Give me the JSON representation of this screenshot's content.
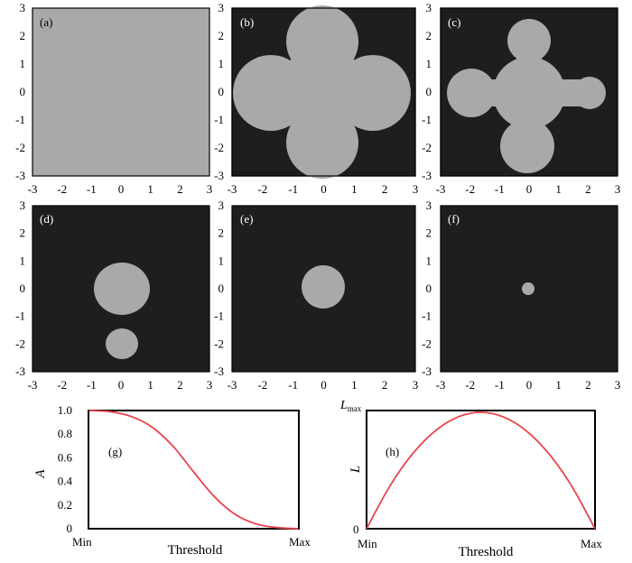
{
  "panels": [
    {
      "label": "(a)",
      "background": "#a9a9a9"
    },
    {
      "label": "(b)",
      "background": "#1e1e1e",
      "shape_fill": "#a9a9a9"
    },
    {
      "label": "(c)",
      "background": "#1e1e1e",
      "shape_fill": "#a9a9a9"
    },
    {
      "label": "(d)",
      "background": "#1e1e1e",
      "shape_fill": "#a9a9a9"
    },
    {
      "label": "(e)",
      "background": "#1e1e1e",
      "shape_fill": "#a9a9a9"
    },
    {
      "label": "(f)",
      "background": "#1e1e1e",
      "shape_fill": "#a9a9a9"
    }
  ],
  "ticks": [
    "-3",
    "-2",
    "-1",
    "0",
    "1",
    "2",
    "3"
  ],
  "chart_data": [
    {
      "panel": "(g)",
      "type": "line",
      "xlabel": "Threshold",
      "ylabel": "A",
      "x_tick_labels": [
        "Min",
        "Max"
      ],
      "y_tick_labels": [
        "0",
        "0.2",
        "0.4",
        "0.6",
        "0.8",
        "1.0"
      ],
      "ylim": [
        0,
        1
      ],
      "line_color": "#e8424a",
      "series": [
        {
          "x": [
            0,
            0.1,
            0.2,
            0.3,
            0.4,
            0.5,
            0.6,
            0.7,
            0.8,
            0.9,
            1.0
          ],
          "y": [
            1.0,
            0.99,
            0.95,
            0.86,
            0.7,
            0.48,
            0.27,
            0.12,
            0.04,
            0.01,
            0.0
          ]
        }
      ]
    },
    {
      "panel": "(h)",
      "type": "line",
      "xlabel": "Threshold",
      "ylabel": "L",
      "ymax_label": "L",
      "ymax_label_sub": "max",
      "x_tick_labels": [
        "Min",
        "Max"
      ],
      "y_tick_labels": [
        "0"
      ],
      "line_color": "#e8424a",
      "series": [
        {
          "x": [
            0,
            0.1,
            0.2,
            0.3,
            0.4,
            0.5,
            0.6,
            0.7,
            0.8,
            0.9,
            1.0
          ],
          "y": [
            0.0,
            0.36,
            0.64,
            0.84,
            0.96,
            1.0,
            0.96,
            0.84,
            0.64,
            0.36,
            0.0
          ]
        }
      ]
    }
  ]
}
